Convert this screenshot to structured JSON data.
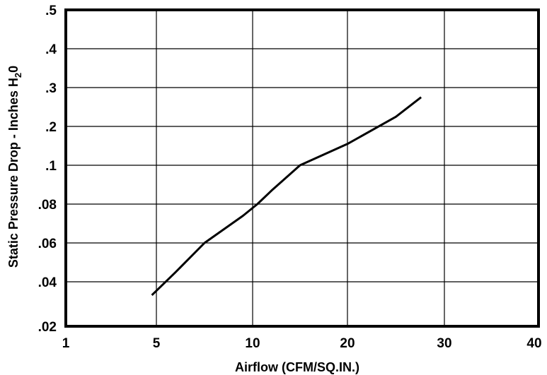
{
  "chart_data": {
    "type": "line",
    "xlabel": "Airflow (CFM/SQ.IN.)",
    "ylabel": "Static Pressure Drop - Inches H",
    "ylabel_subscript": "2",
    "ylabel_suffix": "0",
    "x_tick_labels": [
      "1",
      "5",
      "10",
      "20",
      "30",
      "40"
    ],
    "y_tick_labels": [
      ".5",
      ".4",
      ".3",
      ".2",
      ".1",
      ".08",
      ".06",
      ".04",
      ".02"
    ],
    "grid": true,
    "series": [
      {
        "x": [
          4.8,
          6.0,
          7.5,
          9.5,
          10.5,
          12.0,
          15.0,
          20.0,
          25.0,
          27.6
        ],
        "y": [
          0.034,
          0.045,
          0.06,
          0.074,
          0.08,
          0.087,
          0.1,
          0.155,
          0.225,
          0.275
        ]
      }
    ],
    "line_color": "#000000"
  }
}
